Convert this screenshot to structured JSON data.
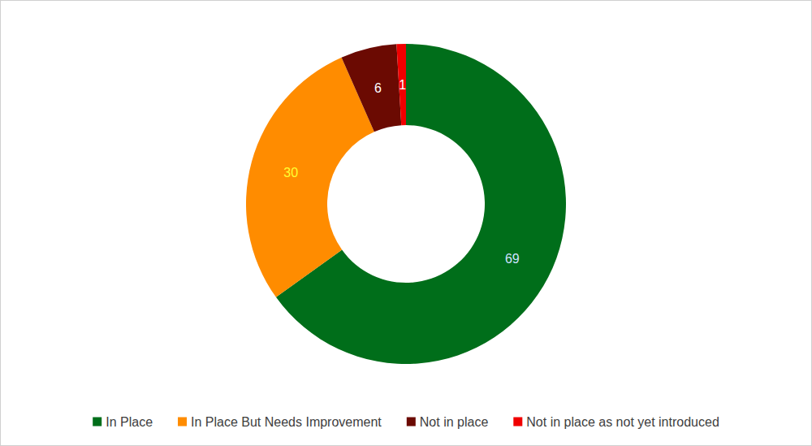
{
  "chart_data": {
    "type": "donut",
    "categories": [
      "In Place",
      "In Place But Needs Improvement",
      "Not in place",
      "Not in place as not yet introduced"
    ],
    "values": [
      69,
      30,
      6,
      1
    ],
    "colors": [
      "#006e1a",
      "#ff8c00",
      "#6b0a02",
      "#f00000"
    ],
    "data_labels": true,
    "legend": "bottom"
  }
}
